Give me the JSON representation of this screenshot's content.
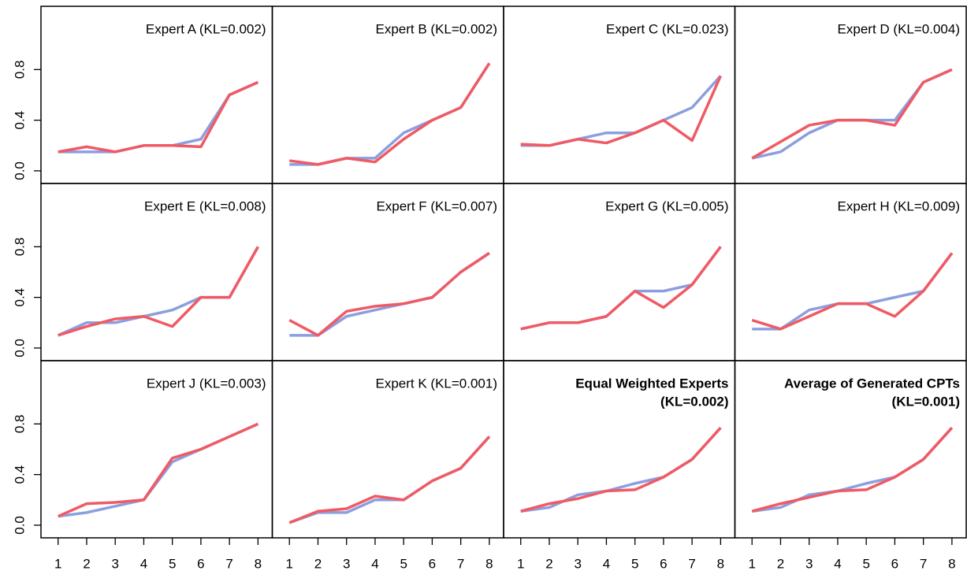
{
  "chart_data": [
    {
      "type": "line",
      "title": "Expert A (KL=0.002)",
      "x": [
        1,
        2,
        3,
        4,
        5,
        6,
        7,
        8
      ],
      "xlim": [
        0.4,
        8.5
      ],
      "ylim": [
        -0.1,
        1.3
      ],
      "yticks": [
        {
          "value": 0,
          "label": "0.0"
        },
        {
          "value": 0.4,
          "label": "0.4"
        },
        {
          "value": 0.8,
          "label": "0.8"
        }
      ],
      "series": [
        {
          "color": "#8b9fdf",
          "values": [
            0.15,
            0.15,
            0.15,
            0.2,
            0.2,
            0.25,
            0.6,
            0.7
          ]
        },
        {
          "color": "#f05a64",
          "values": [
            0.15,
            0.19,
            0.15,
            0.2,
            0.2,
            0.19,
            0.6,
            0.7
          ]
        }
      ]
    },
    {
      "type": "line",
      "title": "Expert B (KL=0.002)",
      "x": [
        1,
        2,
        3,
        4,
        5,
        6,
        7,
        8
      ],
      "xlim": [
        0.4,
        8.5
      ],
      "ylim": [
        -0.1,
        1.3
      ],
      "series": [
        {
          "color": "#8b9fdf",
          "values": [
            0.05,
            0.05,
            0.1,
            0.1,
            0.3,
            0.4,
            0.5,
            0.85
          ]
        },
        {
          "color": "#f05a64",
          "values": [
            0.08,
            0.05,
            0.1,
            0.07,
            0.25,
            0.4,
            0.5,
            0.85
          ]
        }
      ]
    },
    {
      "type": "line",
      "title": "Expert C (KL=0.023)",
      "x": [
        1,
        2,
        3,
        4,
        5,
        6,
        7,
        8
      ],
      "xlim": [
        0.4,
        8.5
      ],
      "ylim": [
        -0.1,
        1.3
      ],
      "series": [
        {
          "color": "#8b9fdf",
          "values": [
            0.2,
            0.2,
            0.25,
            0.3,
            0.3,
            0.4,
            0.5,
            0.75
          ]
        },
        {
          "color": "#f05a64",
          "values": [
            0.21,
            0.2,
            0.25,
            0.22,
            0.3,
            0.4,
            0.24,
            0.75
          ]
        }
      ]
    },
    {
      "type": "line",
      "title": "Expert D (KL=0.004)",
      "x": [
        1,
        2,
        3,
        4,
        5,
        6,
        7,
        8
      ],
      "xlim": [
        0.4,
        8.5
      ],
      "ylim": [
        -0.1,
        1.3
      ],
      "series": [
        {
          "color": "#8b9fdf",
          "values": [
            0.1,
            0.15,
            0.3,
            0.4,
            0.4,
            0.4,
            0.7,
            0.8
          ]
        },
        {
          "color": "#f05a64",
          "values": [
            0.1,
            0.23,
            0.36,
            0.4,
            0.4,
            0.36,
            0.7,
            0.8
          ]
        }
      ]
    },
    {
      "type": "line",
      "title": "Expert E (KL=0.008)",
      "x": [
        1,
        2,
        3,
        4,
        5,
        6,
        7,
        8
      ],
      "xlim": [
        0.4,
        8.5
      ],
      "ylim": [
        -0.1,
        1.3
      ],
      "yticks": [
        {
          "value": 0,
          "label": "0.0"
        },
        {
          "value": 0.4,
          "label": "0.4"
        },
        {
          "value": 0.8,
          "label": "0.8"
        }
      ],
      "series": [
        {
          "color": "#8b9fdf",
          "values": [
            0.1,
            0.2,
            0.2,
            0.25,
            0.3,
            0.4,
            0.4,
            0.8
          ]
        },
        {
          "color": "#f05a64",
          "values": [
            0.1,
            0.17,
            0.23,
            0.25,
            0.17,
            0.4,
            0.4,
            0.8
          ]
        }
      ]
    },
    {
      "type": "line",
      "title": "Expert F (KL=0.007)",
      "x": [
        1,
        2,
        3,
        4,
        5,
        6,
        7,
        8
      ],
      "xlim": [
        0.4,
        8.5
      ],
      "ylim": [
        -0.1,
        1.3
      ],
      "series": [
        {
          "color": "#8b9fdf",
          "values": [
            0.1,
            0.1,
            0.25,
            0.3,
            0.35,
            0.4,
            0.6,
            0.75
          ]
        },
        {
          "color": "#f05a64",
          "values": [
            0.22,
            0.1,
            0.29,
            0.33,
            0.35,
            0.4,
            0.6,
            0.75
          ]
        }
      ]
    },
    {
      "type": "line",
      "title": "Expert G (KL=0.005)",
      "x": [
        1,
        2,
        3,
        4,
        5,
        6,
        7,
        8
      ],
      "xlim": [
        0.4,
        8.5
      ],
      "ylim": [
        -0.1,
        1.3
      ],
      "series": [
        {
          "color": "#8b9fdf",
          "values": [
            0.15,
            0.2,
            0.2,
            0.25,
            0.45,
            0.45,
            0.5,
            0.8
          ]
        },
        {
          "color": "#f05a64",
          "values": [
            0.15,
            0.2,
            0.2,
            0.25,
            0.45,
            0.32,
            0.5,
            0.8
          ]
        }
      ]
    },
    {
      "type": "line",
      "title": "Expert H (KL=0.009)",
      "x": [
        1,
        2,
        3,
        4,
        5,
        6,
        7,
        8
      ],
      "xlim": [
        0.4,
        8.5
      ],
      "ylim": [
        -0.1,
        1.3
      ],
      "series": [
        {
          "color": "#8b9fdf",
          "values": [
            0.15,
            0.15,
            0.3,
            0.35,
            0.35,
            0.4,
            0.45,
            0.75
          ]
        },
        {
          "color": "#f05a64",
          "values": [
            0.22,
            0.15,
            0.25,
            0.35,
            0.35,
            0.25,
            0.45,
            0.75
          ]
        }
      ]
    },
    {
      "type": "line",
      "title": "Expert J (KL=0.003)",
      "x": [
        1,
        2,
        3,
        4,
        5,
        6,
        7,
        8
      ],
      "xlim": [
        0.4,
        8.5
      ],
      "ylim": [
        -0.1,
        1.3
      ],
      "xticks": [
        1,
        2,
        3,
        4,
        5,
        6,
        7,
        8
      ],
      "yticks": [
        {
          "value": 0,
          "label": "0.0"
        },
        {
          "value": 0.4,
          "label": "0.4"
        },
        {
          "value": 0.8,
          "label": "0.8"
        }
      ],
      "series": [
        {
          "color": "#8b9fdf",
          "values": [
            0.07,
            0.1,
            0.15,
            0.2,
            0.5,
            0.6,
            0.7,
            0.8
          ]
        },
        {
          "color": "#f05a64",
          "values": [
            0.07,
            0.17,
            0.18,
            0.2,
            0.53,
            0.6,
            0.7,
            0.8
          ]
        }
      ]
    },
    {
      "type": "line",
      "title": "Expert K (KL=0.001)",
      "x": [
        1,
        2,
        3,
        4,
        5,
        6,
        7,
        8
      ],
      "xlim": [
        0.4,
        8.5
      ],
      "ylim": [
        -0.1,
        1.3
      ],
      "xticks": [
        1,
        2,
        3,
        4,
        5,
        6,
        7,
        8
      ],
      "series": [
        {
          "color": "#8b9fdf",
          "values": [
            0.02,
            0.1,
            0.1,
            0.2,
            0.2,
            0.35,
            0.45,
            0.7
          ]
        },
        {
          "color": "#f05a64",
          "values": [
            0.02,
            0.11,
            0.13,
            0.23,
            0.2,
            0.35,
            0.45,
            0.7
          ]
        }
      ]
    },
    {
      "type": "line",
      "title": "Equal Weighted Experts",
      "subtitle": "(KL=0.002)",
      "bold": true,
      "x": [
        1,
        2,
        3,
        4,
        5,
        6,
        7,
        8
      ],
      "xlim": [
        0.4,
        8.5
      ],
      "ylim": [
        -0.1,
        1.3
      ],
      "xticks": [
        1,
        2,
        3,
        4,
        5,
        6,
        7,
        8
      ],
      "series": [
        {
          "color": "#8b9fdf",
          "values": [
            0.11,
            0.14,
            0.24,
            0.27,
            0.33,
            0.38,
            0.52,
            0.77
          ]
        },
        {
          "color": "#f05a64",
          "values": [
            0.11,
            0.17,
            0.21,
            0.27,
            0.28,
            0.38,
            0.52,
            0.77
          ]
        }
      ]
    },
    {
      "type": "line",
      "title": "Average of Generated CPTs",
      "subtitle": "(KL=0.001)",
      "bold": true,
      "x": [
        1,
        2,
        3,
        4,
        5,
        6,
        7,
        8
      ],
      "xlim": [
        0.4,
        8.5
      ],
      "ylim": [
        -0.1,
        1.3
      ],
      "xticks": [
        1,
        2,
        3,
        4,
        5,
        6,
        7,
        8
      ],
      "series": [
        {
          "color": "#8b9fdf",
          "values": [
            0.11,
            0.14,
            0.24,
            0.27,
            0.33,
            0.38,
            0.52,
            0.77
          ]
        },
        {
          "color": "#f05a64",
          "values": [
            0.11,
            0.17,
            0.22,
            0.27,
            0.28,
            0.38,
            0.52,
            0.77
          ]
        }
      ]
    }
  ]
}
